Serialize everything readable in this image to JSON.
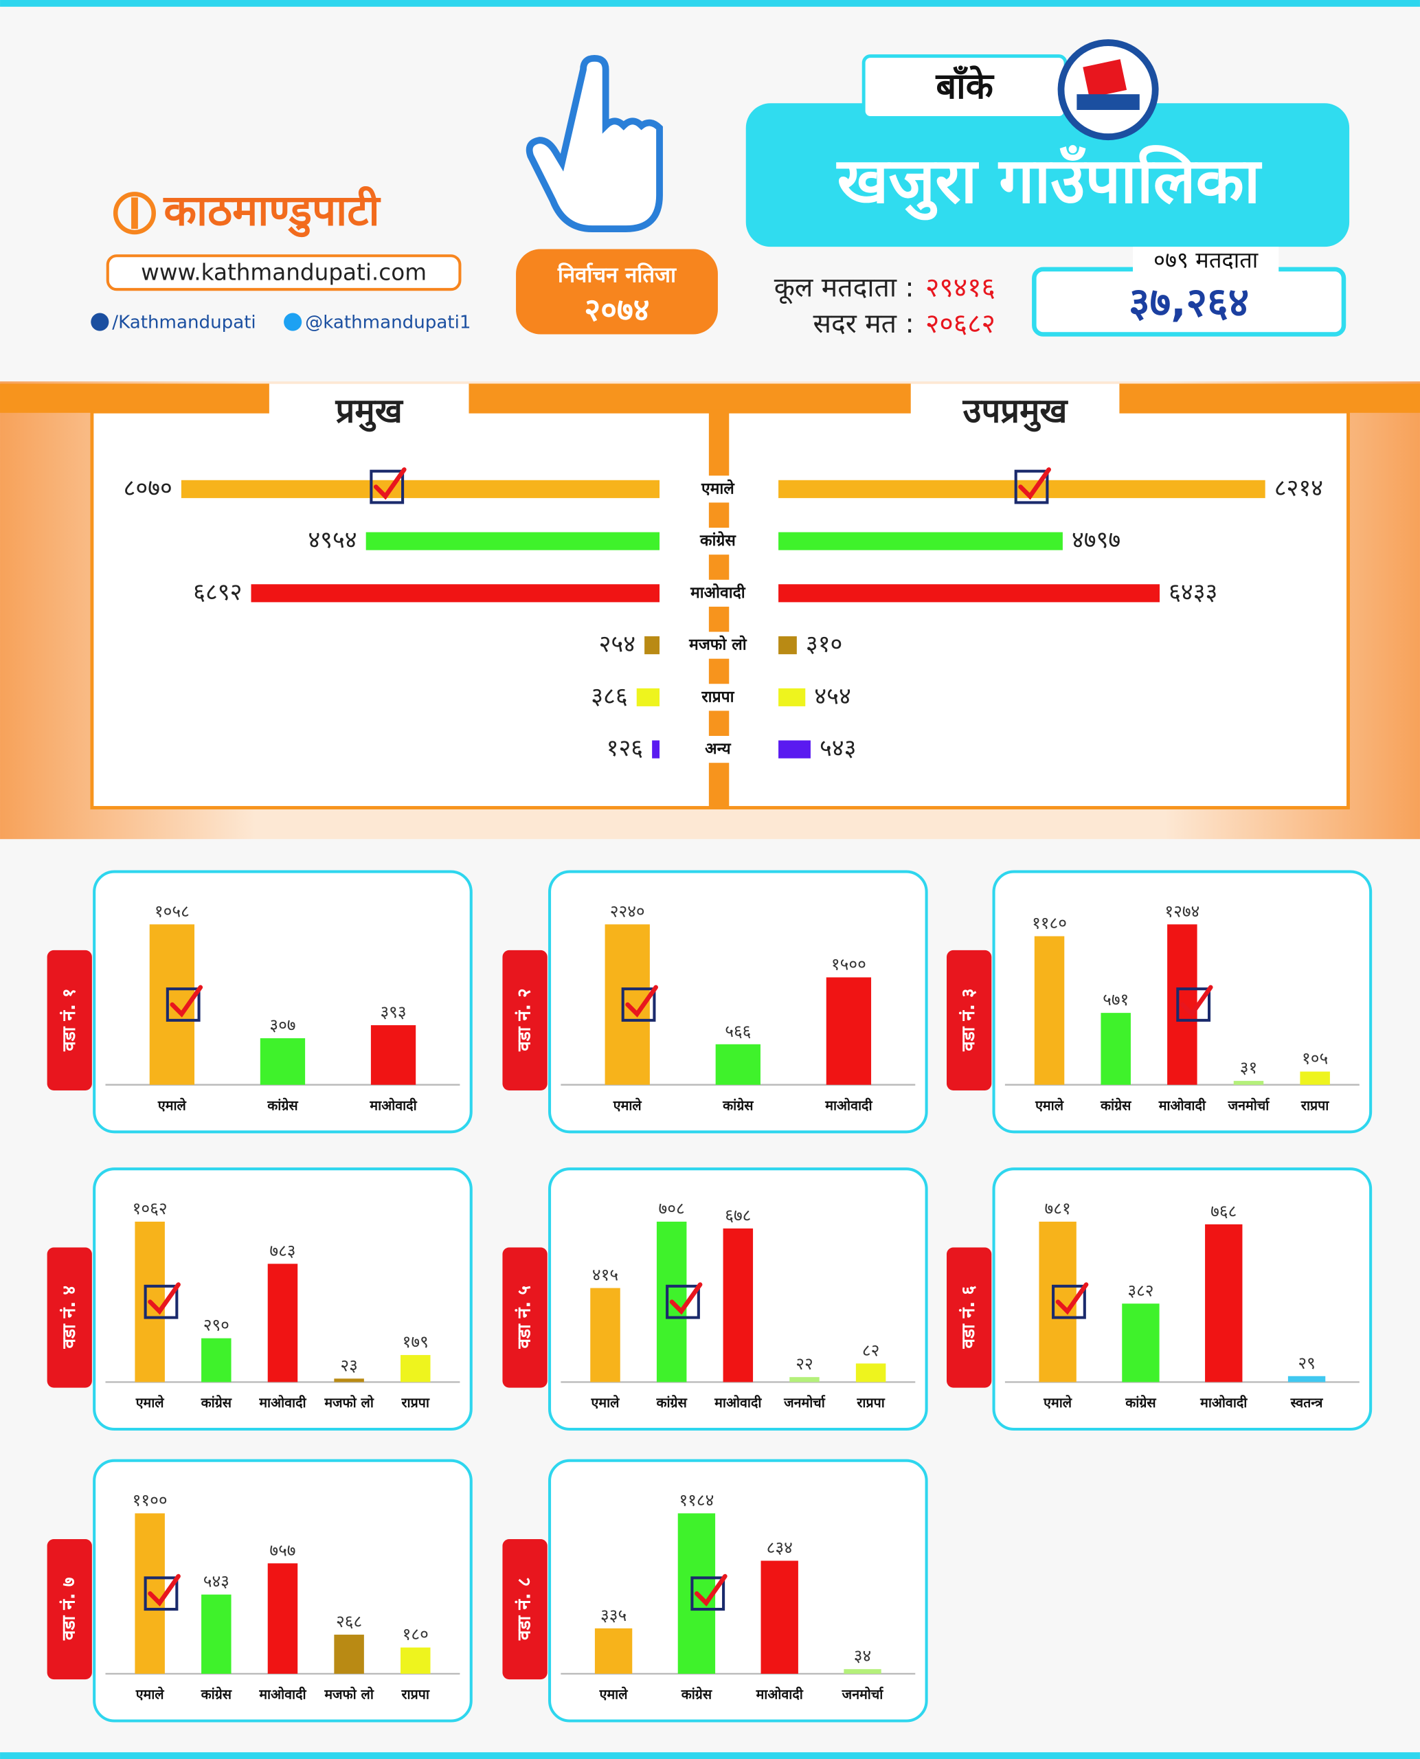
{
  "header": {
    "logo": "काठमाण्डुपाटी",
    "url": "www.kathmandupati.com",
    "facebook": "/Kathmandupati",
    "twitter": "@kathmandupati1",
    "badge_title": "निर्वाचन नतिजा",
    "badge_year": "२०७४",
    "district": "बाँके",
    "municipality": "खजुरा गाउँपालिका",
    "total_voters_label": "कूल मतदाता :",
    "total_voters": "२९४१६",
    "valid_votes_label": "सदर मत :",
    "valid_votes": "२०६८२",
    "voters_079_label": "०७९ मतदाता",
    "voters_079": "३७,२६४"
  },
  "chart_data": [
    {
      "type": "butterfly",
      "categories": [
        "एमाले",
        "कांग्रेस",
        "माओवादी",
        "मजफो लो",
        "राप्रपा",
        "अन्य"
      ],
      "colors": [
        "#f7b31b",
        "#3ff22b",
        "#f01414",
        "#b98a14",
        "#eef41e",
        "#5a1af0"
      ],
      "series": [
        {
          "name": "प्रमुख",
          "values": [
            8070,
            4954,
            6892,
            254,
            386,
            126
          ],
          "value_labels": [
            "८०७०",
            "४९५४",
            "६८९२",
            "२५४",
            "३८६",
            "१२६"
          ],
          "checked": [
            true,
            false,
            false,
            false,
            false,
            false
          ]
        },
        {
          "name": "उपप्रमुख",
          "values": [
            8214,
            4797,
            6433,
            310,
            454,
            543
          ],
          "value_labels": [
            "८२१४",
            "४७९७",
            "६४३३",
            "३१०",
            "४५४",
            "५४३"
          ],
          "checked": [
            true,
            false,
            false,
            false,
            false,
            false
          ]
        }
      ]
    },
    {
      "type": "bar",
      "title": "वडा नं. १",
      "categories": [
        "एमाले",
        "कांग्रेस",
        "माओवादी"
      ],
      "colors": [
        "#f7b31b",
        "#3ff22b",
        "#f01414"
      ],
      "values": [
        1058,
        307,
        393
      ],
      "value_labels": [
        "१०५८",
        "३०७",
        "३९३"
      ],
      "checked": [
        true,
        false,
        false
      ]
    },
    {
      "type": "bar",
      "title": "वडा नं. २",
      "categories": [
        "एमाले",
        "कांग्रेस",
        "माओवादी"
      ],
      "colors": [
        "#f7b31b",
        "#3ff22b",
        "#f01414"
      ],
      "values": [
        2240,
        566,
        1500
      ],
      "value_labels": [
        "२२४०",
        "५६६",
        "१५००"
      ],
      "checked": [
        true,
        false,
        false
      ]
    },
    {
      "type": "bar",
      "title": "वडा नं. ३",
      "categories": [
        "एमाले",
        "कांग्रेस",
        "माओवादी",
        "जनमोर्चा",
        "राप्रपा"
      ],
      "colors": [
        "#f7b31b",
        "#3ff22b",
        "#f01414",
        "#b4f07a",
        "#eef41e"
      ],
      "values": [
        1180,
        571,
        1274,
        31,
        105
      ],
      "value_labels": [
        "११८०",
        "५७१",
        "१२७४",
        "३१",
        "१०५"
      ],
      "checked": [
        false,
        false,
        true,
        false,
        false
      ]
    },
    {
      "type": "bar",
      "title": "वडा नं. ४",
      "categories": [
        "एमाले",
        "कांग्रेस",
        "माओवादी",
        "मजफो लो",
        "राप्रपा"
      ],
      "colors": [
        "#f7b31b",
        "#3ff22b",
        "#f01414",
        "#b98a14",
        "#eef41e"
      ],
      "values": [
        1062,
        290,
        783,
        23,
        179
      ],
      "value_labels": [
        "१०६२",
        "२९०",
        "७८३",
        "२३",
        "१७९"
      ],
      "checked": [
        true,
        false,
        false,
        false,
        false
      ]
    },
    {
      "type": "bar",
      "title": "वडा नं. ५",
      "categories": [
        "एमाले",
        "कांग्रेस",
        "माओवादी",
        "जनमोर्चा",
        "राप्रपा"
      ],
      "colors": [
        "#f7b31b",
        "#3ff22b",
        "#f01414",
        "#b4f07a",
        "#eef41e"
      ],
      "values": [
        415,
        708,
        678,
        22,
        82
      ],
      "value_labels": [
        "४१५",
        "७०८",
        "६७८",
        "२२",
        "८२"
      ],
      "checked": [
        false,
        true,
        false,
        false,
        false
      ]
    },
    {
      "type": "bar",
      "title": "वडा नं. ६",
      "categories": [
        "एमाले",
        "कांग्रेस",
        "माओवादी",
        "स्वतन्त्र"
      ],
      "colors": [
        "#f7b31b",
        "#3ff22b",
        "#f01414",
        "#40c8f0"
      ],
      "values": [
        781,
        382,
        768,
        29
      ],
      "value_labels": [
        "७८१",
        "३८२",
        "७६८",
        "२९"
      ],
      "checked": [
        true,
        false,
        false,
        false
      ]
    },
    {
      "type": "bar",
      "title": "वडा नं. ७",
      "categories": [
        "एमाले",
        "कांग्रेस",
        "माओवादी",
        "मजफो लो",
        "राप्रपा"
      ],
      "colors": [
        "#f7b31b",
        "#3ff22b",
        "#f01414",
        "#b98a14",
        "#eef41e"
      ],
      "values": [
        1100,
        543,
        757,
        268,
        180
      ],
      "value_labels": [
        "११००",
        "५४३",
        "७५७",
        "२६८",
        "१८०"
      ],
      "checked": [
        true,
        false,
        false,
        false,
        false
      ]
    },
    {
      "type": "bar",
      "title": "वडा नं. ८",
      "categories": [
        "एमाले",
        "कांग्रेस",
        "माओवादी",
        "जनमोर्चा"
      ],
      "colors": [
        "#f7b31b",
        "#3ff22b",
        "#f01414",
        "#b4f07a"
      ],
      "values": [
        335,
        1184,
        834,
        34
      ],
      "value_labels": [
        "३३५",
        "११८४",
        "८३४",
        "३४"
      ],
      "checked": [
        false,
        true,
        false,
        false
      ]
    }
  ]
}
